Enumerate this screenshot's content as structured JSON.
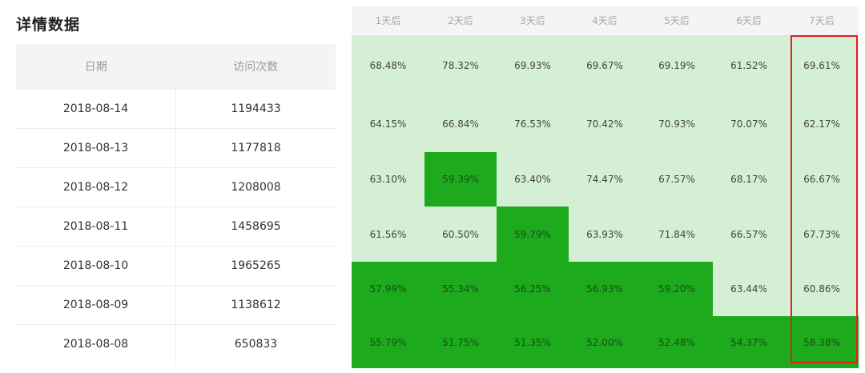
{
  "title": "详情数据",
  "left_table": {
    "headers": [
      "日期",
      "访问次数"
    ],
    "rows": [
      {
        "date": "2018-08-14",
        "visits": "1194433"
      },
      {
        "date": "2018-08-13",
        "visits": "1177818"
      },
      {
        "date": "2018-08-12",
        "visits": "1208008"
      },
      {
        "date": "2018-08-11",
        "visits": "1458695"
      },
      {
        "date": "2018-08-10",
        "visits": "1965265"
      },
      {
        "date": "2018-08-09",
        "visits": "1138612"
      },
      {
        "date": "2018-08-08",
        "visits": "650833"
      }
    ]
  },
  "heatmap": {
    "columns": [
      "1天后",
      "2天后",
      "3天后",
      "4天后",
      "5天后",
      "6天后",
      "7天后"
    ],
    "colors": {
      "light": "#d4efd4",
      "dark": "#1dab1d",
      "highlight": "#e02020"
    },
    "highlighted_column": "7天后",
    "rows": [
      [
        "68.48%",
        "78.32%",
        "69.93%",
        "69.67%",
        "69.19%",
        "61.52%",
        "69.61%"
      ],
      [
        "64.15%",
        "66.84%",
        "76.53%",
        "70.42%",
        "70.93%",
        "70.07%",
        "62.17%"
      ],
      [
        "63.10%",
        "59.39%",
        "63.40%",
        "74.47%",
        "67.57%",
        "68.17%",
        "66.67%"
      ],
      [
        "61.56%",
        "60.50%",
        "59.79%",
        "63.93%",
        "71.84%",
        "66.57%",
        "67.73%"
      ],
      [
        "57.99%",
        "55.34%",
        "56.25%",
        "56.93%",
        "59.20%",
        "63.44%",
        "60.86%"
      ],
      [
        "55.79%",
        "51.75%",
        "51.35%",
        "52.00%",
        "52.48%",
        "54.37%",
        "58.38%"
      ]
    ],
    "dark_cells": [
      [
        2,
        1
      ],
      [
        3,
        2
      ],
      [
        4,
        0
      ],
      [
        4,
        1
      ],
      [
        4,
        2
      ],
      [
        4,
        3
      ],
      [
        4,
        4
      ],
      [
        5,
        0
      ],
      [
        5,
        1
      ],
      [
        5,
        2
      ],
      [
        5,
        3
      ],
      [
        5,
        4
      ],
      [
        5,
        5
      ],
      [
        5,
        6
      ]
    ]
  }
}
